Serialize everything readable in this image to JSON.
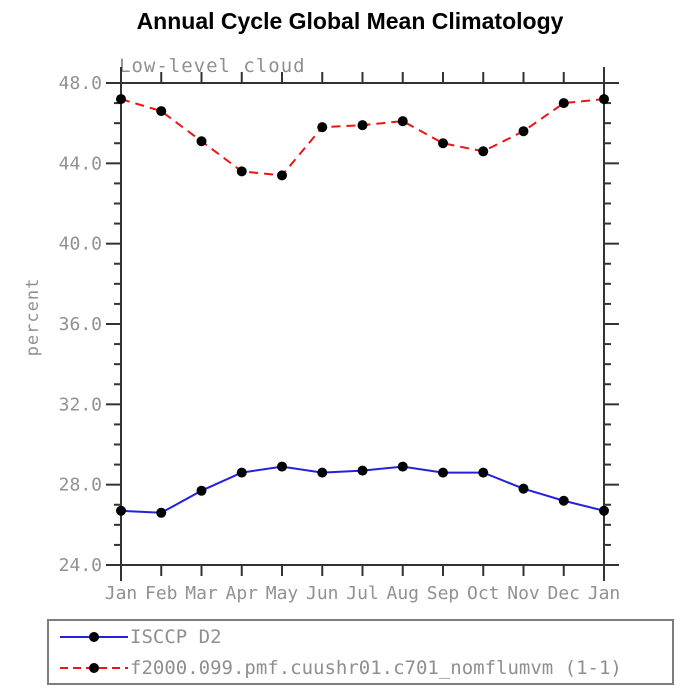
{
  "chart_data": {
    "type": "line",
    "title": "Annual Cycle Global Mean Climatology",
    "subtitle": "Low-level cloud",
    "ylabel": "percent",
    "x_categories": [
      "Jan",
      "Feb",
      "Mar",
      "Apr",
      "May",
      "Jun",
      "Jul",
      "Aug",
      "Sep",
      "Oct",
      "Nov",
      "Dec",
      "Jan"
    ],
    "ylim": [
      24.0,
      48.0
    ],
    "y_major_step": 4,
    "y_minor_step": 1,
    "y_tick_format_decimals": 1,
    "grid": false,
    "legend_position": "bottom-left",
    "axis_color": "#333333",
    "label_color": "#919191",
    "marker_color": "#000000",
    "series": [
      {
        "name": "ISCCP D2",
        "color": "#2222dd",
        "line_style": "solid",
        "values": [
          26.7,
          26.6,
          27.7,
          28.6,
          28.9,
          28.6,
          28.7,
          28.9,
          28.6,
          28.6,
          27.8,
          27.2,
          26.7
        ]
      },
      {
        "name": "f2000.099.pmf.cuushr01.c701_nomflumvm (1-1)",
        "color": "#ee1414",
        "line_style": "dashed",
        "values": [
          47.2,
          46.6,
          45.1,
          43.6,
          43.4,
          45.8,
          45.9,
          46.1,
          45.0,
          44.6,
          45.6,
          47.0,
          47.2
        ]
      }
    ]
  }
}
